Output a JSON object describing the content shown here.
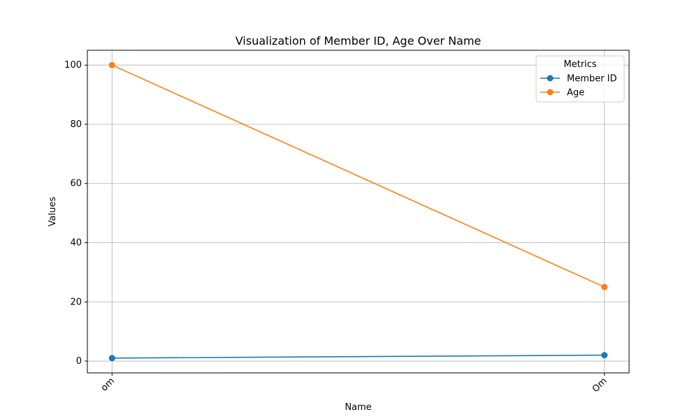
{
  "chart_data": {
    "type": "line",
    "title": "Visualization of Member ID, Age Over Name",
    "xlabel": "Name",
    "ylabel": "Values",
    "categories": [
      "om",
      "Om"
    ],
    "ylim": [
      -4,
      105
    ],
    "yticks": [
      0,
      20,
      40,
      60,
      80,
      100
    ],
    "grid": true,
    "legend": {
      "title": "Metrics",
      "placement": "top-right"
    },
    "series": [
      {
        "name": "Member ID",
        "values": [
          1,
          2
        ],
        "color": "#1f77b4"
      },
      {
        "name": "Age",
        "values": [
          100,
          25
        ],
        "color": "#ff7f0e"
      }
    ]
  }
}
